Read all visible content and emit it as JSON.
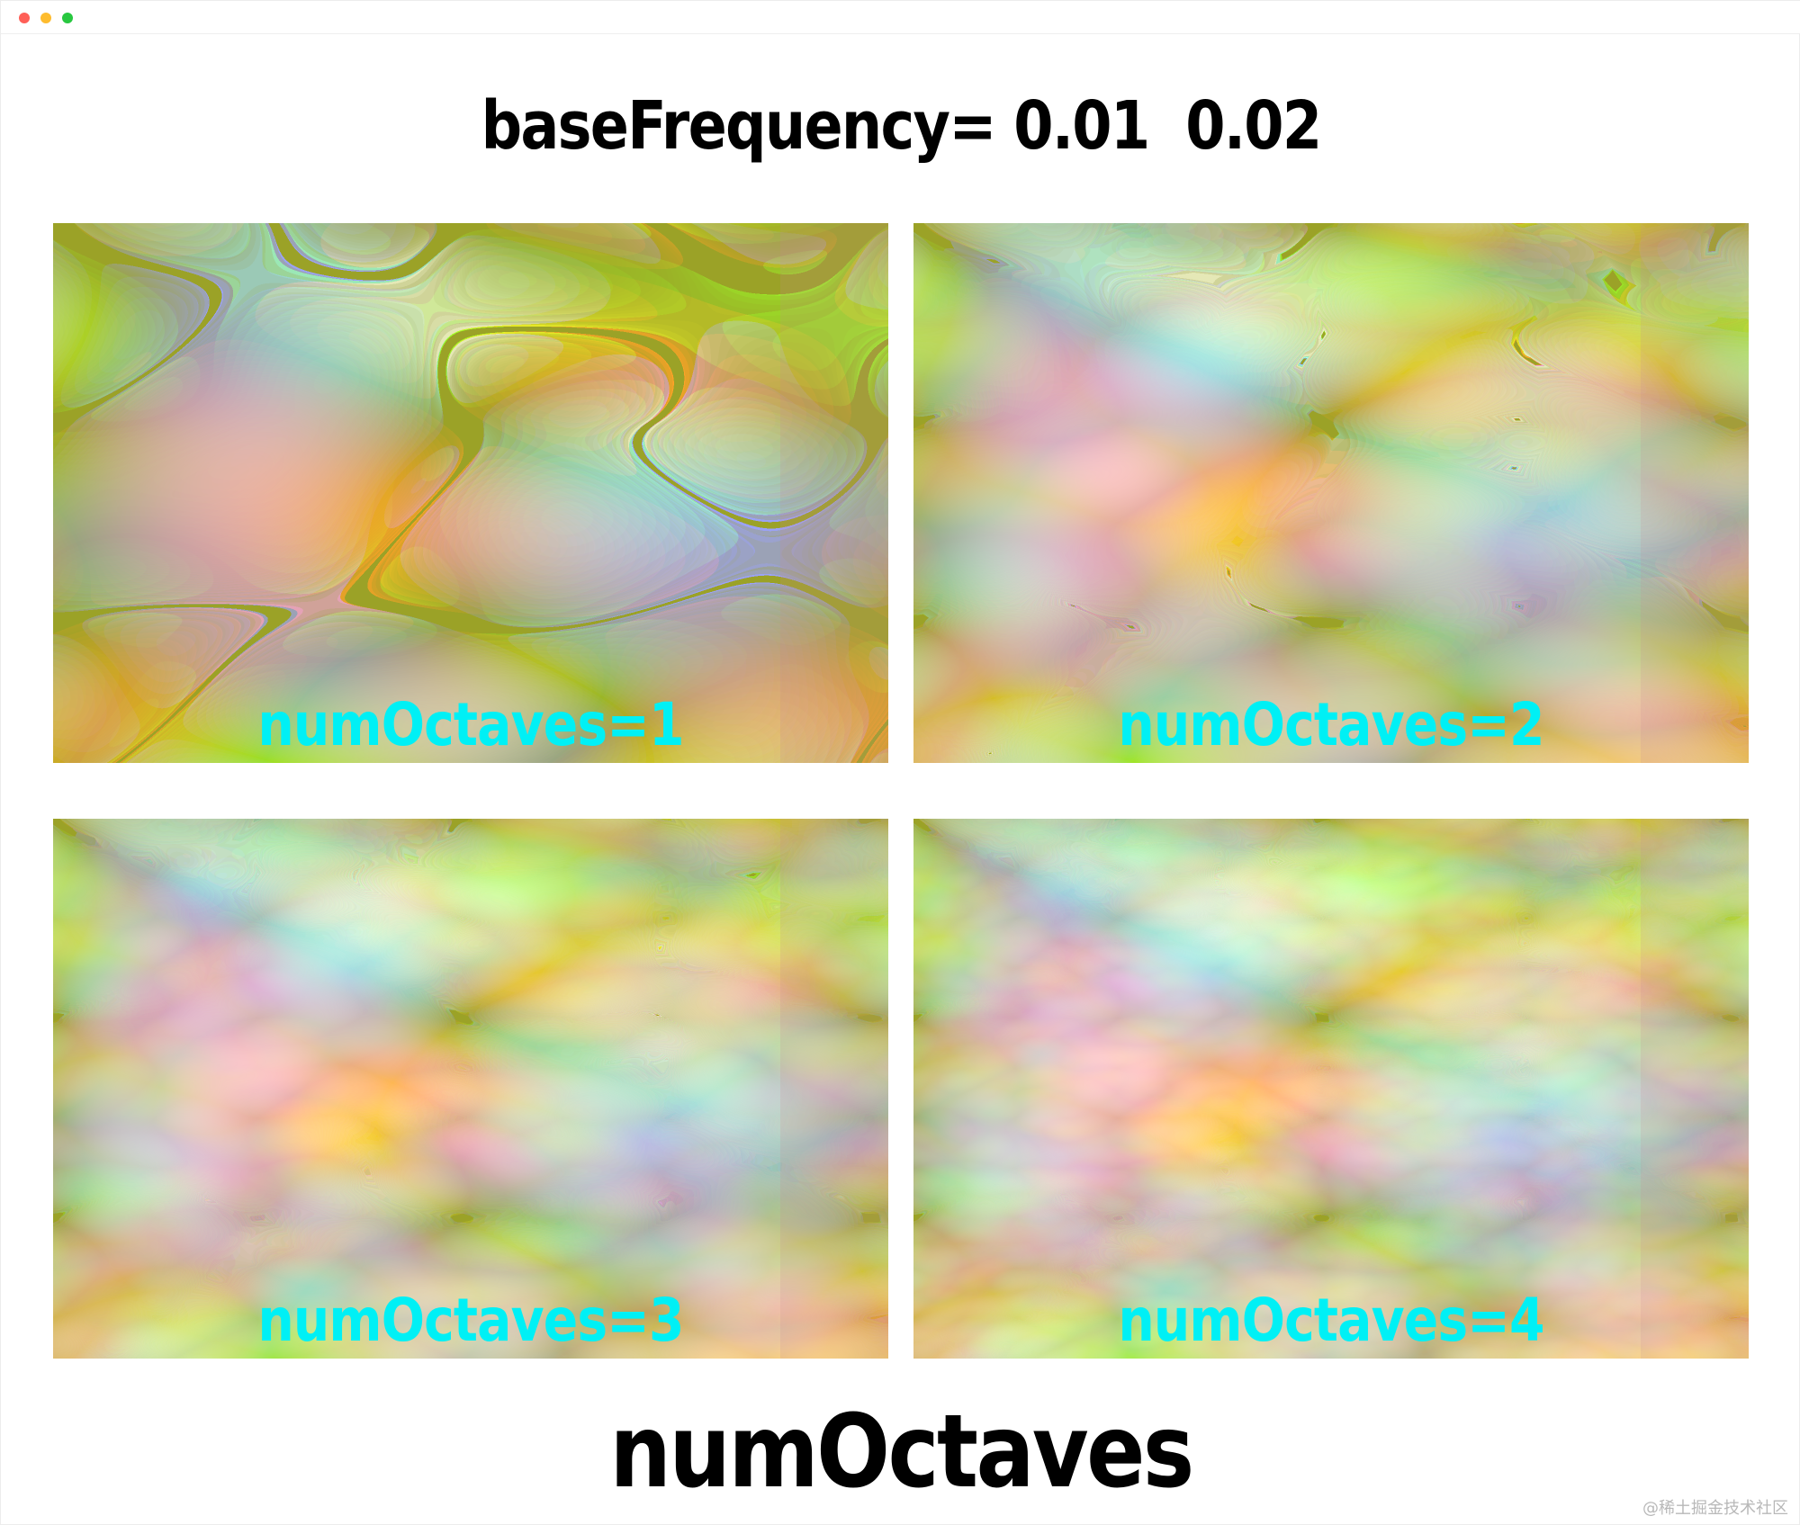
{
  "window": {
    "controls": [
      "close",
      "minimize",
      "maximize"
    ]
  },
  "heading": "baseFrequency= 0.01  0.02",
  "panels": [
    {
      "label": "numOctaves=1",
      "octaves": 1
    },
    {
      "label": "numOctaves=2",
      "octaves": 2
    },
    {
      "label": "numOctaves=3",
      "octaves": 3
    },
    {
      "label": "numOctaves=4",
      "octaves": 4
    }
  ],
  "caption": "numOctaves",
  "watermark": "@稀土掘金技术社区",
  "colors": {
    "label_color": "#00f0f5",
    "noise_base": "#8f9a24",
    "close": "#ff5f57",
    "minimize": "#febc2e",
    "maximize": "#28c840"
  }
}
